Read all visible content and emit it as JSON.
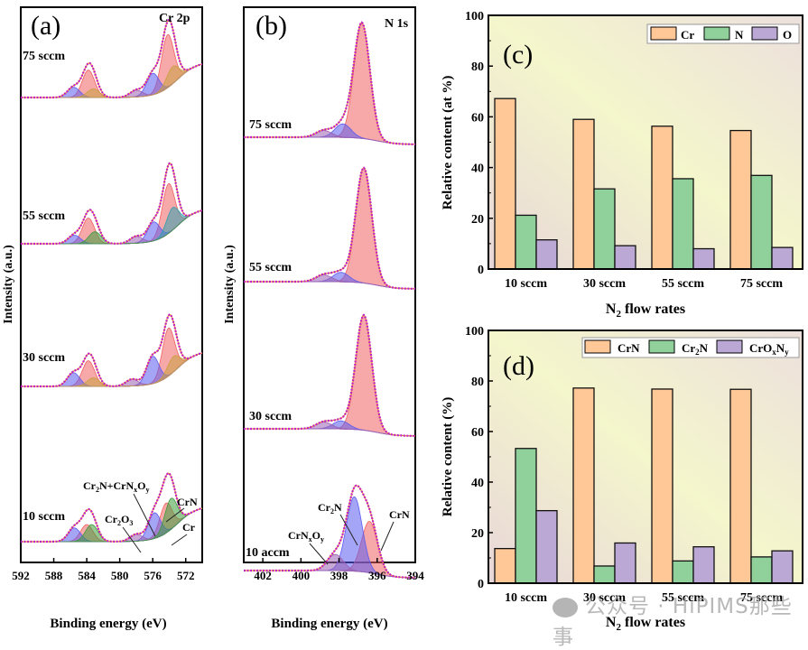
{
  "figure": {
    "watermark": "公众号 · HiPIMS那些事"
  },
  "chart_data": [
    {
      "id": "a",
      "type": "line",
      "panel_label": "(a)",
      "title": "Cr 2p",
      "xlabel": "Binding energy (eV)",
      "ylabel": "Intensity (a.u.)",
      "xlim": [
        592,
        570
      ],
      "xticks": [
        592,
        588,
        584,
        580,
        576,
        572
      ],
      "x_reversed": true,
      "series_labels": [
        "75 sccm",
        "55 sccm",
        "30 sccm",
        "10 sccm"
      ],
      "peak_annotations": [
        "Cr2N+CrNxOy",
        "CrN",
        "Cr2O3",
        "Cr"
      ],
      "spectra": [
        {
          "name": "75 sccm",
          "peaks": [
            {
              "center": 574.2,
              "height": 0.62,
              "color": "#f06060"
            },
            {
              "center": 576.0,
              "height": 0.25,
              "color": "#5b5bf0"
            },
            {
              "center": 573.6,
              "height": 0.2,
              "color": "#c9a040"
            },
            {
              "center": 578.0,
              "height": 0.08,
              "color": "#9a60b0"
            },
            {
              "center": 583.8,
              "height": 0.32,
              "color": "#f06060"
            },
            {
              "center": 585.6,
              "height": 0.12,
              "color": "#5b5bf0"
            },
            {
              "center": 583.2,
              "height": 0.1,
              "color": "#c9a040"
            }
          ]
        },
        {
          "name": "55 sccm",
          "peaks": [
            {
              "center": 574.1,
              "height": 0.58,
              "color": "#f06060"
            },
            {
              "center": 575.9,
              "height": 0.22,
              "color": "#5b5bf0"
            },
            {
              "center": 573.6,
              "height": 0.26,
              "color": "#30a0b0"
            },
            {
              "center": 578.0,
              "height": 0.08,
              "color": "#9a60b0"
            },
            {
              "center": 583.8,
              "height": 0.3,
              "color": "#f06060"
            },
            {
              "center": 585.5,
              "height": 0.1,
              "color": "#5b5bf0"
            },
            {
              "center": 583.0,
              "height": 0.14,
              "color": "#3c9c3c"
            }
          ]
        },
        {
          "name": "30 sccm",
          "peaks": [
            {
              "center": 574.1,
              "height": 0.56,
              "color": "#f06060"
            },
            {
              "center": 576.0,
              "height": 0.32,
              "color": "#5b5bf0"
            },
            {
              "center": 573.5,
              "height": 0.18,
              "color": "#c9a040"
            },
            {
              "center": 578.5,
              "height": 0.08,
              "color": "#9a60b0"
            },
            {
              "center": 583.8,
              "height": 0.3,
              "color": "#f06060"
            },
            {
              "center": 585.6,
              "height": 0.16,
              "color": "#5b5bf0"
            },
            {
              "center": 583.2,
              "height": 0.1,
              "color": "#c9a040"
            }
          ]
        },
        {
          "name": "10 sccm",
          "peaks": [
            {
              "center": 574.4,
              "height": 0.35,
              "color": "#f06060"
            },
            {
              "center": 575.8,
              "height": 0.3,
              "color": "#5b5bf0"
            },
            {
              "center": 573.8,
              "height": 0.36,
              "color": "#3c9c3c"
            },
            {
              "center": 578.0,
              "height": 0.08,
              "color": "#9a60b0"
            },
            {
              "center": 584.0,
              "height": 0.2,
              "color": "#f06060"
            },
            {
              "center": 585.5,
              "height": 0.16,
              "color": "#5b5bf0"
            },
            {
              "center": 583.4,
              "height": 0.2,
              "color": "#3c9c3c"
            }
          ]
        }
      ]
    },
    {
      "id": "b",
      "type": "line",
      "panel_label": "(b)",
      "title": "N 1s",
      "xlabel": "Binding energy (eV)",
      "ylabel": "Intensity (a.u.)",
      "xlim": [
        403,
        394
      ],
      "xticks": [
        402,
        400,
        398,
        396,
        394
      ],
      "x_reversed": true,
      "series_labels": [
        "75 sccm",
        "55 sccm",
        "30 sccm",
        "10 accm"
      ],
      "peak_annotations": [
        "Cr2N",
        "CrN",
        "CrNxOy"
      ],
      "spectra": [
        {
          "name": "75 sccm",
          "peaks": [
            {
              "center": 396.8,
              "height": 0.85,
              "color": "#f06060"
            },
            {
              "center": 397.8,
              "height": 0.1,
              "color": "#5b5bf0"
            },
            {
              "center": 398.8,
              "height": 0.05,
              "color": "#9a60b0"
            }
          ]
        },
        {
          "name": "55 sccm",
          "peaks": [
            {
              "center": 396.7,
              "height": 0.85,
              "color": "#f06060"
            },
            {
              "center": 397.9,
              "height": 0.07,
              "color": "#5b5bf0"
            },
            {
              "center": 398.8,
              "height": 0.05,
              "color": "#9a60b0"
            }
          ]
        },
        {
          "name": "30 sccm",
          "peaks": [
            {
              "center": 396.7,
              "height": 0.85,
              "color": "#f06060"
            },
            {
              "center": 397.9,
              "height": 0.06,
              "color": "#5b5bf0"
            },
            {
              "center": 398.8,
              "height": 0.05,
              "color": "#9a60b0"
            }
          ]
        },
        {
          "name": "10 accm",
          "peaks": [
            {
              "center": 396.4,
              "height": 0.38,
              "color": "#f06060"
            },
            {
              "center": 397.2,
              "height": 0.55,
              "color": "#5b5bf0"
            },
            {
              "center": 398.2,
              "height": 0.12,
              "color": "#9a60b0"
            }
          ]
        }
      ]
    },
    {
      "id": "c",
      "type": "bar",
      "panel_label": "(c)",
      "title": "",
      "xlabel": "N2 flow rates",
      "ylabel": "Relative content (at %)",
      "ylim": [
        0,
        100
      ],
      "yticks": [
        0,
        20,
        40,
        60,
        80,
        100
      ],
      "categories": [
        "10 sccm",
        "30 sccm",
        "55 sccm",
        "75 sccm"
      ],
      "legend_position": "top-right",
      "series": [
        {
          "name": "Cr",
          "color": "#ffc896",
          "values": [
            67.2,
            59.0,
            56.3,
            54.6
          ]
        },
        {
          "name": "N",
          "color": "#90d09a",
          "values": [
            21.2,
            31.6,
            35.6,
            36.9
          ]
        },
        {
          "name": "O",
          "color": "#bca8d4",
          "values": [
            11.5,
            9.2,
            8.0,
            8.5
          ]
        }
      ]
    },
    {
      "id": "d",
      "type": "bar",
      "panel_label": "(d)",
      "title": "",
      "xlabel": "N2 flow rates",
      "ylabel": "Relative content (%)",
      "ylim": [
        0,
        100
      ],
      "yticks": [
        0,
        20,
        40,
        60,
        80,
        100
      ],
      "categories": [
        "10 sccm",
        "30 sccm",
        "55 sccm",
        "75 sccm"
      ],
      "legend_position": "top-right",
      "series": [
        {
          "name": "CrN",
          "color": "#ffc896",
          "values": [
            13.7,
            77.2,
            76.8,
            76.7
          ]
        },
        {
          "name": "Cr2N",
          "color": "#90d09a",
          "values": [
            53.3,
            6.8,
            8.8,
            10.4
          ]
        },
        {
          "name": "CrOxNy",
          "color": "#bca8d4",
          "values": [
            28.7,
            15.9,
            14.4,
            12.8
          ]
        }
      ]
    }
  ]
}
